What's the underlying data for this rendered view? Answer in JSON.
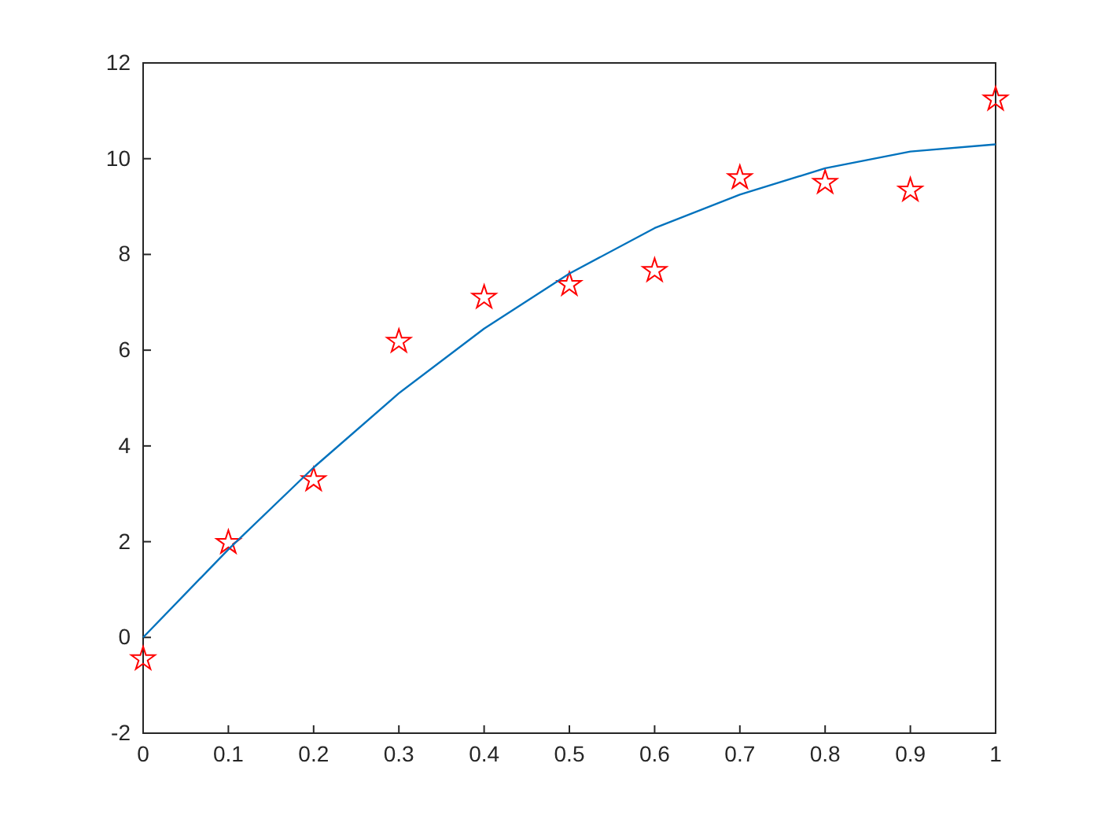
{
  "chart_data": {
    "type": "scatter",
    "x": [
      0,
      0.1,
      0.2,
      0.3,
      0.4,
      0.5,
      0.6,
      0.7,
      0.8,
      0.9,
      1
    ],
    "series": [
      {
        "color": "#ff0000",
        "marker": "star",
        "values": [
          -0.45,
          1.98,
          3.29,
          6.18,
          7.1,
          7.37,
          7.66,
          9.6,
          9.5,
          9.34,
          11.24
        ]
      },
      {
        "type": "line",
        "color": "#0072bd",
        "marker": "none",
        "values": [
          0,
          1.84,
          3.55,
          5.1,
          6.45,
          7.6,
          8.55,
          9.25,
          9.8,
          10.15,
          10.3
        ]
      }
    ],
    "xlim": [
      0,
      1
    ],
    "xticks": [
      0,
      0.1,
      0.2,
      0.3,
      0.4,
      0.5,
      0.6,
      0.7,
      0.8,
      0.9,
      1
    ],
    "ylim": [
      -2,
      12
    ],
    "yticks": [
      -2,
      0,
      2,
      4,
      6,
      8,
      10,
      12
    ],
    "grid": false
  }
}
